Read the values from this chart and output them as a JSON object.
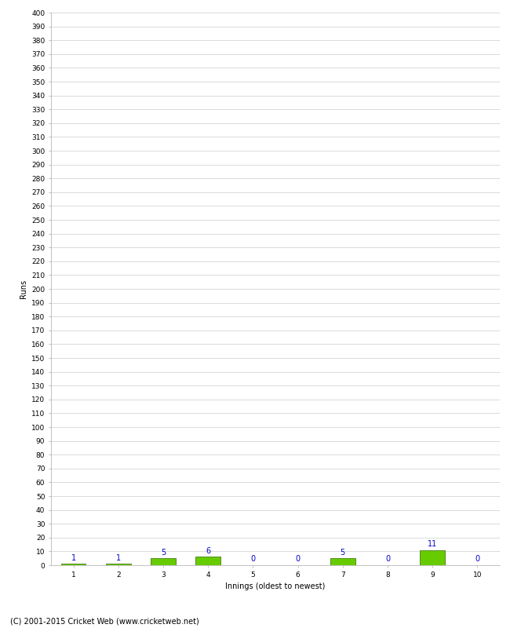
{
  "xlabel": "Innings (oldest to newest)",
  "ylabel": "Runs",
  "categories": [
    1,
    2,
    3,
    4,
    5,
    6,
    7,
    8,
    9,
    10
  ],
  "values": [
    1,
    1,
    5,
    6,
    0,
    0,
    5,
    0,
    11,
    0
  ],
  "bar_color": "#66cc00",
  "bar_edge_color": "#336600",
  "ylim": [
    0,
    400
  ],
  "ytick_step": 10,
  "label_color": "#0000cc",
  "label_fontsize": 7,
  "ylabel_fontsize": 7,
  "xlabel_fontsize": 7,
  "tick_fontsize": 6.5,
  "footer": "(C) 2001-2015 Cricket Web (www.cricketweb.net)",
  "footer_fontsize": 7,
  "grid_color": "#cccccc",
  "background_color": "#ffffff",
  "bar_width": 0.55
}
